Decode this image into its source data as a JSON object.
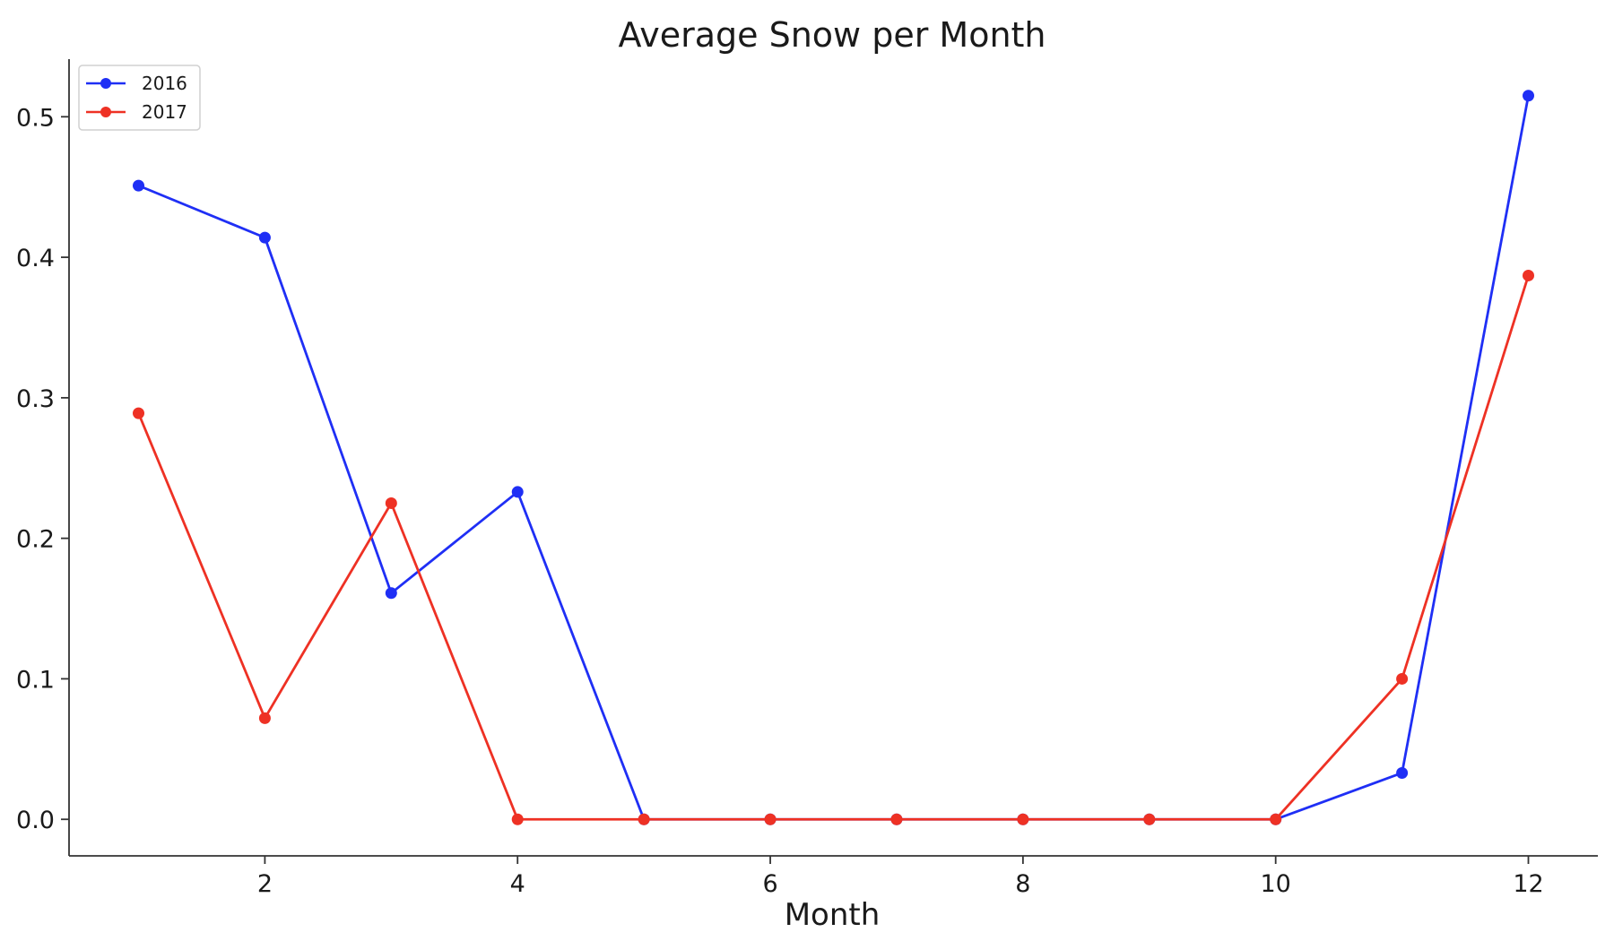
{
  "chart_data": {
    "type": "line",
    "title": "Average Snow per Month",
    "xlabel": "Month",
    "ylabel": "",
    "x": [
      1,
      2,
      3,
      4,
      5,
      6,
      7,
      8,
      9,
      10,
      11,
      12
    ],
    "xlim": [
      0.45,
      12.55
    ],
    "ylim": [
      -0.026,
      0.541
    ],
    "xticks": [
      2,
      4,
      6,
      8,
      10,
      12
    ],
    "yticks": [
      0.0,
      0.1,
      0.2,
      0.3,
      0.4,
      0.5
    ],
    "xtick_labels": [
      "2",
      "4",
      "6",
      "8",
      "10",
      "12"
    ],
    "ytick_labels": [
      "0.0",
      "0.1",
      "0.2",
      "0.3",
      "0.4",
      "0.5"
    ],
    "grid": false,
    "legend_position": "top-left",
    "series": [
      {
        "name": "2016",
        "color": "#1f2ff5",
        "marker": "circle",
        "values": [
          0.451,
          0.414,
          0.161,
          0.233,
          0.0,
          0.0,
          0.0,
          0.0,
          0.0,
          0.0,
          0.033,
          0.515
        ]
      },
      {
        "name": "2017",
        "color": "#ee3124",
        "marker": "circle",
        "values": [
          0.289,
          0.072,
          0.225,
          0.0,
          0.0,
          0.0,
          0.0,
          0.0,
          0.0,
          0.0,
          0.1,
          0.387
        ]
      }
    ]
  }
}
